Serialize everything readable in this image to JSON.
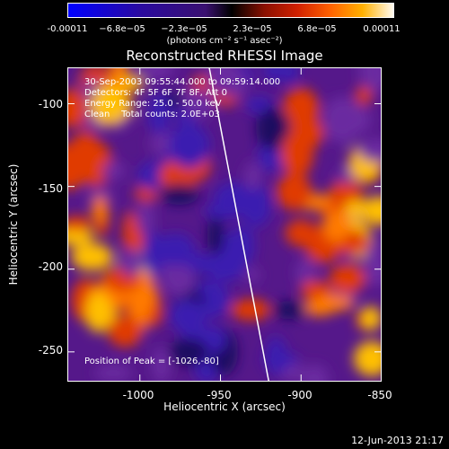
{
  "colorbar": {
    "ticks": [
      "-0.00011",
      "−6.8e−05",
      "−2.3e−05",
      "2.3e−05",
      "6.8e−05",
      "0.00011"
    ],
    "units": "(photons cm⁻² s⁻¹ asec⁻²)"
  },
  "title": "Reconstructed RHESSI Image",
  "info": {
    "time": "30-Sep-2003 09:55:44.000 to 09:59:14.000",
    "detectors": "Detectors: 4F 5F 6F 7F 8F, Att 0",
    "energy": "Energy Range: 25.0 - 50.0 keV",
    "clean": "Clean    Total counts: 2.0E+03"
  },
  "peak": "Position of Peak = [-1026,-80]",
  "chart_data": {
    "type": "heatmap",
    "title": "Reconstructed RHESSI Image",
    "xlabel": "Heliocentric X (arcsec)",
    "ylabel": "Heliocentric Y (arcsec)",
    "xlim": [
      -1045,
      -850
    ],
    "ylim": [
      -268,
      -78
    ],
    "x_ticks": [
      -1000,
      -950,
      -900,
      -850
    ],
    "y_ticks": [
      -100,
      -150,
      -200,
      -250
    ],
    "colorscale": "red-temperature with blue/purple for negative",
    "color_range": [
      -0.00011,
      0.00011
    ],
    "limb_line": {
      "x": [
        -957,
        -920
      ],
      "y": [
        -78,
        -268
      ]
    },
    "peak_position": [
      -1026,
      -80
    ]
  },
  "footer": {
    "timestamp": "12-Jun-2013 21:17"
  }
}
